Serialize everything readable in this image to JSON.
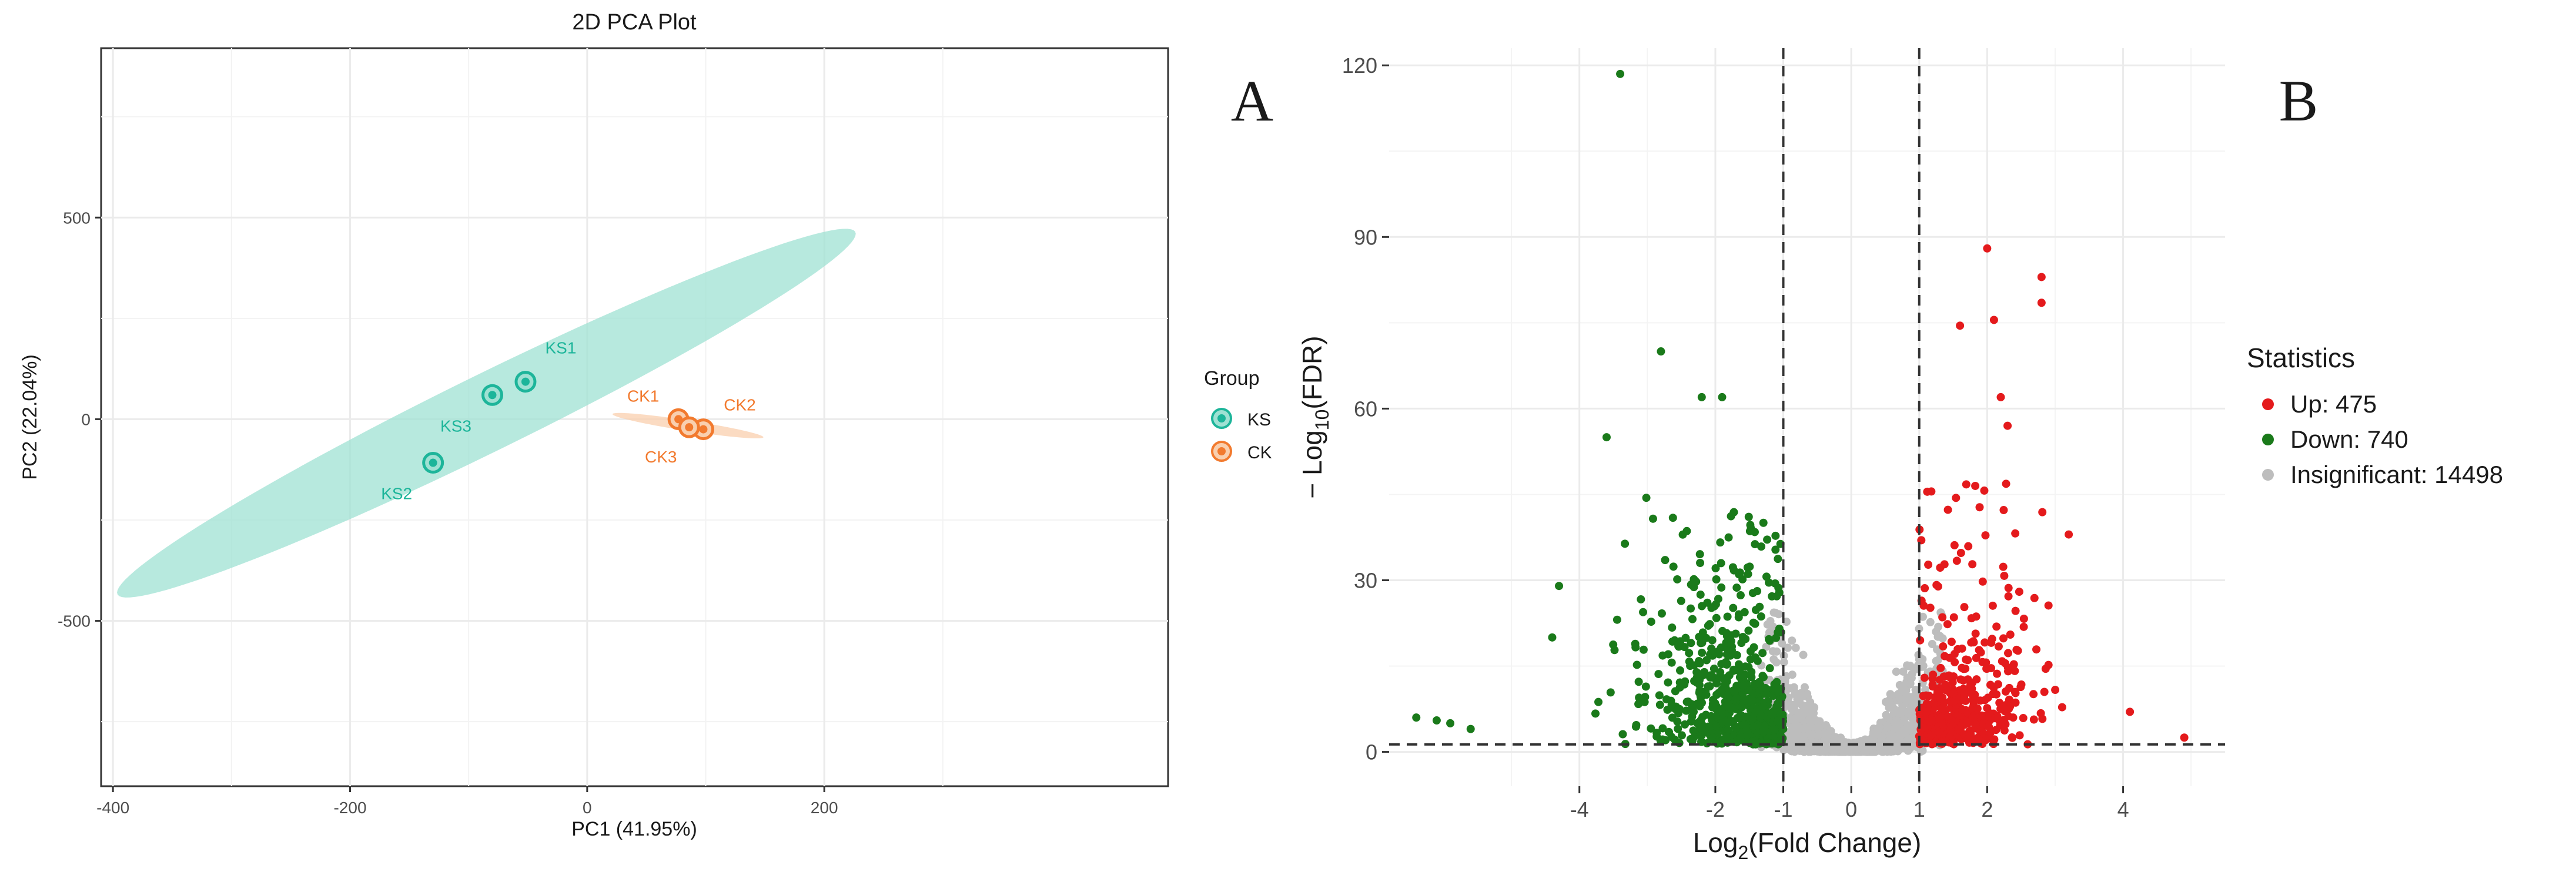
{
  "panels": {
    "a": {
      "letter": "A"
    },
    "b": {
      "letter": "B"
    }
  },
  "colors": {
    "ks": "#1db59a",
    "ks_ellipse": "#9fe1d3",
    "ck": "#f27a2e",
    "ck_ellipse": "#f9cfae",
    "up": "#e41a1c",
    "down": "#1a7a1a",
    "insignificant": "#bdbdbd",
    "grid": "#ebebeb",
    "axis_text": "#4d4d4d",
    "panel_border": "#333333"
  },
  "chart_data": [
    {
      "type": "scatter",
      "title": "2D PCA Plot",
      "xlabel": "PC1 (41.95%)",
      "ylabel": "PC2 (22.04%)",
      "xlim": [
        -410,
        490
      ],
      "ylim": [
        -910,
        920
      ],
      "x_ticks": [
        -400,
        -200,
        0,
        200
      ],
      "y_ticks": [
        -500,
        0,
        500
      ],
      "grid": true,
      "legend": {
        "title": "Group",
        "position": "right",
        "entries": [
          "KS",
          "CK"
        ]
      },
      "series": [
        {
          "name": "KS",
          "points": [
            {
              "label": "KS1",
              "x": -52,
              "y": 93
            },
            {
              "label": "KS2",
              "x": -130,
              "y": -108
            },
            {
              "label": "KS3",
              "x": -80,
              "y": 60
            }
          ],
          "ellipse": {
            "cx": -85,
            "cy": 15,
            "semi_major": 550,
            "semi_minor": 60,
            "angle_deg": 56
          }
        },
        {
          "name": "CK",
          "points": [
            {
              "label": "CK1",
              "x": 77,
              "y": 0
            },
            {
              "label": "CK2",
              "x": 98,
              "y": -25
            },
            {
              "label": "CK3",
              "x": 86,
              "y": -20
            }
          ],
          "ellipse": {
            "cx": 85,
            "cy": -16,
            "semi_major": 70,
            "semi_minor": 12,
            "angle_deg": -25
          }
        }
      ]
    },
    {
      "type": "scatter",
      "xlabel": "Log",
      "xlabel_sub": "2",
      "xlabel_rest": "(Fold Change)",
      "ylabel_prefix": "− Log",
      "ylabel_sub": "10",
      "ylabel_rest": "(FDR)",
      "xlim": [
        -6.8,
        5.5
      ],
      "ylim": [
        -6,
        123
      ],
      "x_ticks": [
        -4,
        -2,
        -1,
        0,
        1,
        2,
        4
      ],
      "y_ticks": [
        0,
        30,
        60,
        90,
        120
      ],
      "grid": true,
      "thresholds": {
        "log2fc": [
          -1,
          1
        ],
        "neg_log10_fdr": 1.3
      },
      "legend": {
        "title": "Statistics",
        "position": "right",
        "entries": [
          "Up: 475",
          "Down: 740",
          "Insignificant: 14498"
        ]
      },
      "series": [
        {
          "name": "Up: 475",
          "count": 475
        },
        {
          "name": "Down: 740",
          "count": 740
        },
        {
          "name": "Insignificant: 14498",
          "count": 14498
        }
      ],
      "highlighted_points": [
        {
          "group": "Down",
          "x": -3.4,
          "y": 118.5
        },
        {
          "group": "Down",
          "x": -2.8,
          "y": 70
        },
        {
          "group": "Down",
          "x": -2.2,
          "y": 62
        },
        {
          "group": "Down",
          "x": -1.9,
          "y": 62
        },
        {
          "group": "Down",
          "x": -3.6,
          "y": 55
        },
        {
          "group": "Down",
          "x": -4.3,
          "y": 29
        },
        {
          "group": "Down",
          "x": -4.4,
          "y": 20
        },
        {
          "group": "Down",
          "x": -6.4,
          "y": 6
        },
        {
          "group": "Down",
          "x": -6.1,
          "y": 5.5
        },
        {
          "group": "Down",
          "x": -5.9,
          "y": 5
        },
        {
          "group": "Down",
          "x": -5.6,
          "y": 4
        },
        {
          "group": "Up",
          "x": 2.0,
          "y": 88
        },
        {
          "group": "Up",
          "x": 2.8,
          "y": 83
        },
        {
          "group": "Up",
          "x": 2.8,
          "y": 78.5
        },
        {
          "group": "Up",
          "x": 2.1,
          "y": 75.5
        },
        {
          "group": "Up",
          "x": 1.6,
          "y": 74.5
        },
        {
          "group": "Up",
          "x": 2.2,
          "y": 62
        },
        {
          "group": "Up",
          "x": 2.3,
          "y": 57
        },
        {
          "group": "Up",
          "x": 3.2,
          "y": 38
        },
        {
          "group": "Up",
          "x": 4.1,
          "y": 7
        },
        {
          "group": "Up",
          "x": 4.9,
          "y": 2.5
        }
      ]
    }
  ]
}
